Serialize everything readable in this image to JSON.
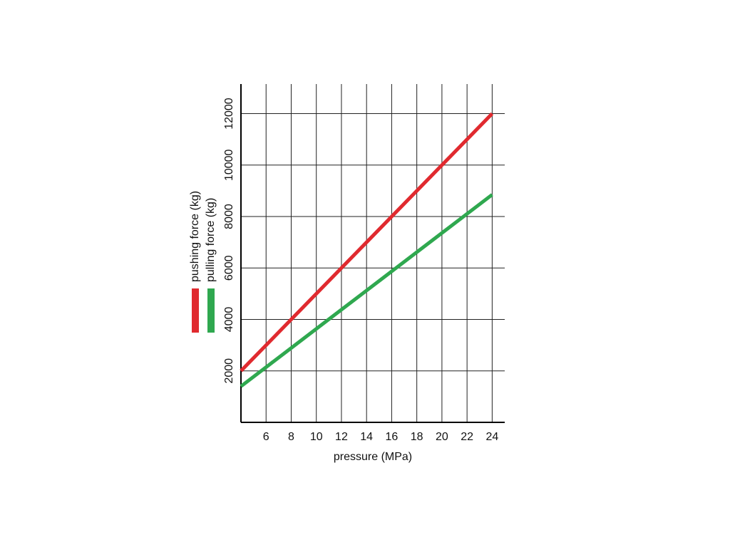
{
  "chart_data": {
    "type": "line",
    "x_label": "pressure (MPa)",
    "x": [
      4,
      8,
      12,
      16,
      20,
      24
    ],
    "series": [
      {
        "name": "pushing force (kg)",
        "color": "#e02a2f",
        "values": [
          2000,
          4000,
          6000,
          8000,
          10000,
          12000
        ]
      },
      {
        "name": "pulling force (kg)",
        "color": "#2fa84f",
        "values": [
          1400,
          2890,
          4380,
          5870,
          7360,
          8850
        ]
      }
    ],
    "xlim": [
      4,
      25
    ],
    "xticks": [
      6,
      8,
      10,
      12,
      14,
      16,
      18,
      20,
      22,
      24
    ],
    "ylim": [
      0,
      13150
    ],
    "yticks": [
      2000,
      4000,
      6000,
      8000,
      10000,
      12000
    ],
    "grid": true
  }
}
